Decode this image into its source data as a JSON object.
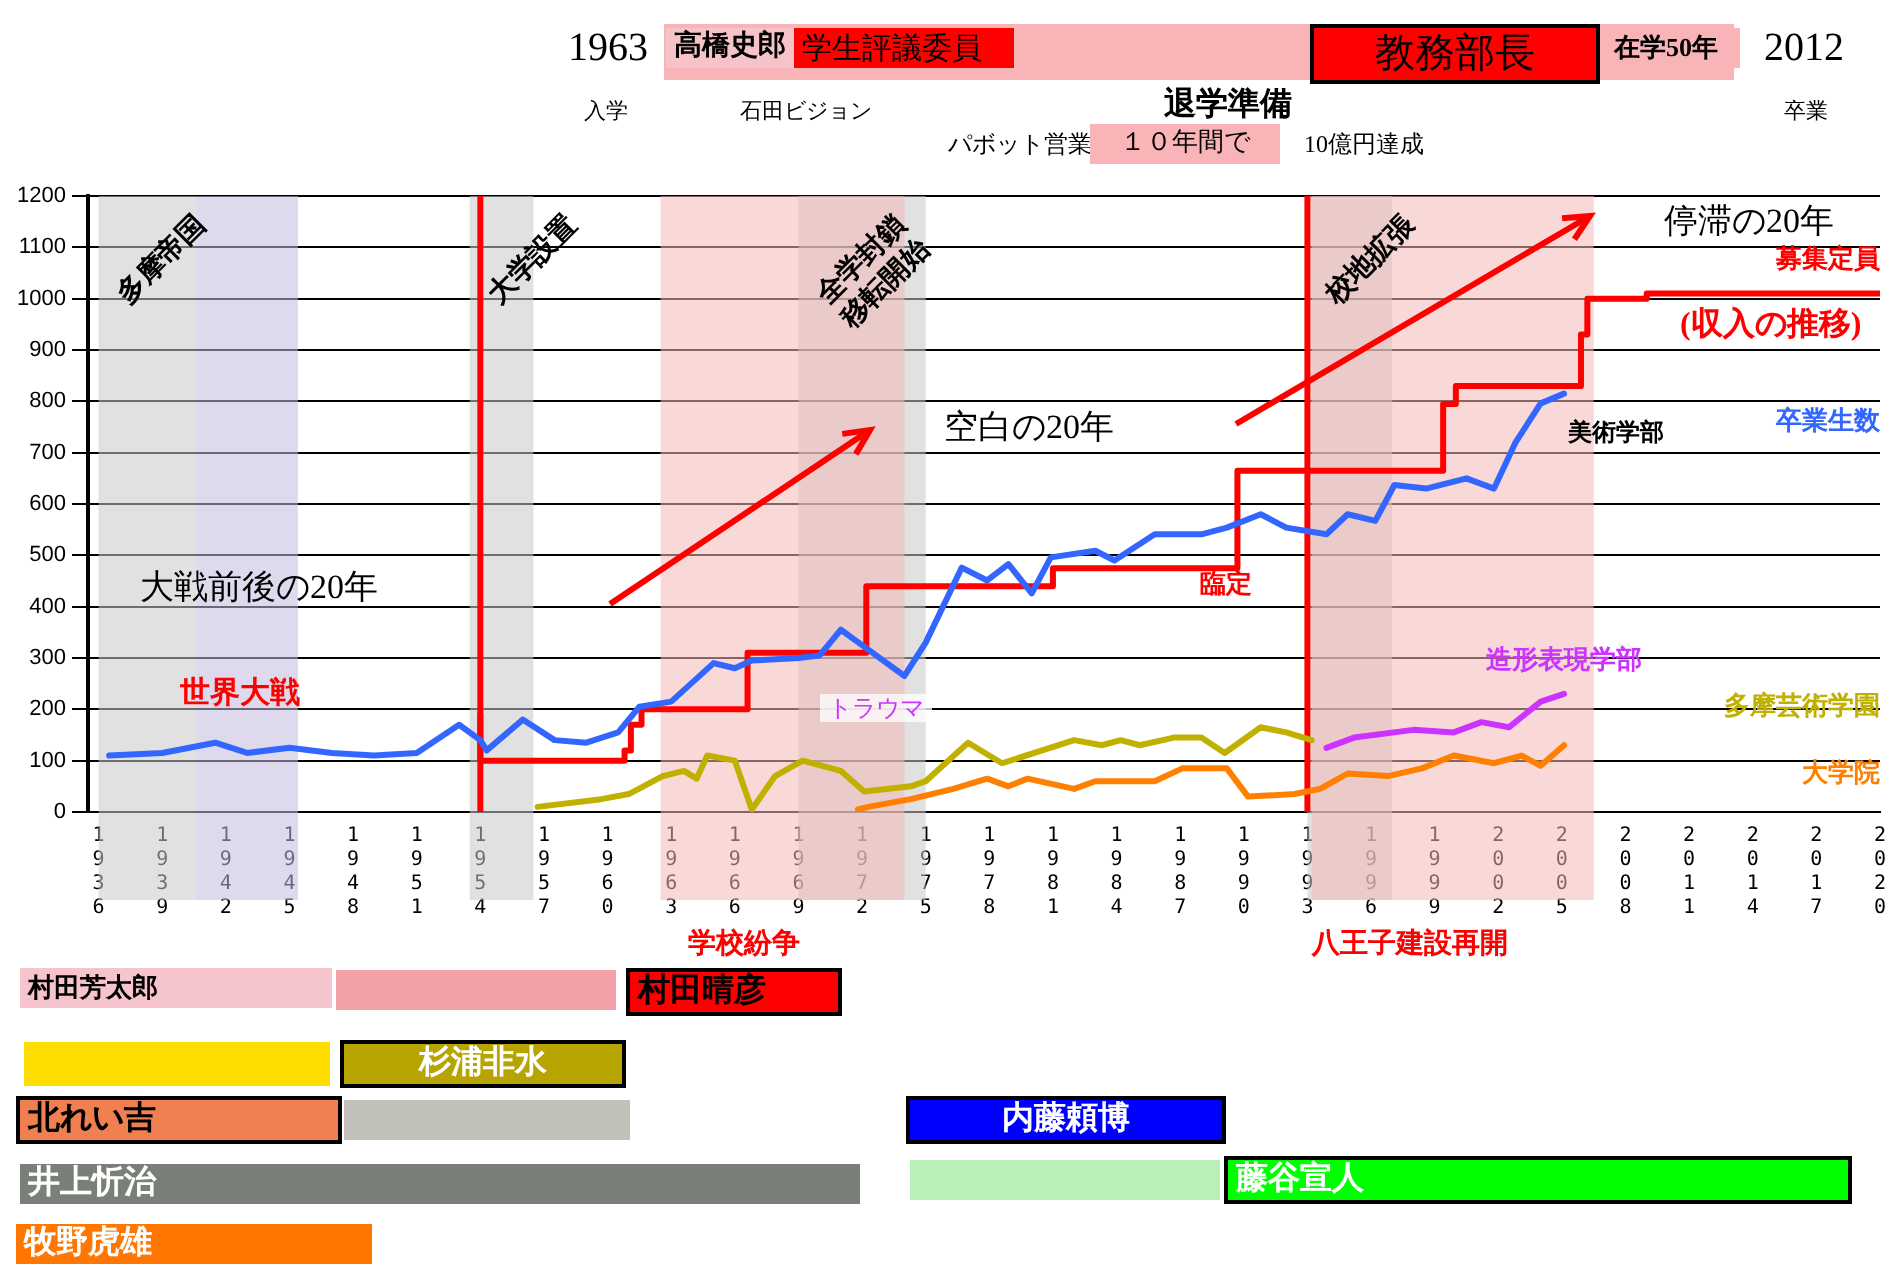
{
  "chart_data": {
    "type": "line",
    "xlim": [
      1935.5,
      2020
    ],
    "ylim": [
      0,
      1200
    ],
    "yticks": [
      0,
      100,
      200,
      300,
      400,
      500,
      600,
      700,
      800,
      900,
      1000,
      1100,
      1200
    ],
    "xticks": [
      1936,
      1939,
      1942,
      1945,
      1948,
      1951,
      1954,
      1957,
      1960,
      1963,
      1966,
      1969,
      1972,
      1975,
      1978,
      1981,
      1984,
      1987,
      1990,
      1993,
      1996,
      1999,
      2002,
      2005,
      2008,
      2011,
      2014,
      2017,
      2020
    ],
    "grid": "y",
    "legend": false,
    "series": [
      {
        "name": "卒業生数",
        "type": "line",
        "color": "#3366ff",
        "x": [
          1936.5,
          1939,
          1941.5,
          1943,
          1945,
          1947,
          1949,
          1951,
          1953,
          1954,
          1954.3,
          1956,
          1957.5,
          1959,
          1960.5,
          1961.5,
          1963,
          1965,
          1966,
          1966.8,
          1969,
          1970,
          1971,
          1972,
          1974,
          1975,
          1976.7,
          1977.9,
          1978.9,
          1980,
          1980.9,
          1983,
          1983.9,
          1985.8,
          1988,
          1989.2,
          1990.8,
          1992,
          1993.9,
          1994.9,
          1996.2,
          1997.1,
          1998.6,
          2000.5,
          2001.8,
          2002.8,
          2004,
          2005.1
        ],
        "values": [
          110,
          115,
          135,
          115,
          125,
          115,
          110,
          115,
          170,
          140,
          120,
          180,
          140,
          135,
          155,
          205,
          215,
          290,
          280,
          295,
          300,
          305,
          355,
          325,
          265,
          330,
          476,
          451,
          483,
          426,
          496,
          509,
          490,
          541,
          541,
          554,
          580,
          554,
          541,
          580,
          567,
          637,
          630,
          650,
          630,
          719,
          796,
          815
        ]
      },
      {
        "name": "募集定員",
        "type": "step",
        "color": "#ff0000",
        "x": [
          1954,
          1954,
          1960.8,
          1961.1,
          1961.6,
          1966.6,
          1972.2,
          1981,
          1989.7,
          1999.4,
          2000,
          2005.9,
          2006.2,
          2009,
          2020
        ],
        "values": [
          190,
          100,
          120,
          170,
          200,
          310,
          440,
          475,
          665,
          795,
          830,
          930,
          1000,
          1010,
          1010
        ]
      },
      {
        "name": "多摩芸術学園",
        "type": "line",
        "color": "#c0b000",
        "x": [
          1956.7,
          1959.7,
          1961,
          1962.6,
          1963.6,
          1964.2,
          1964.7,
          1966,
          1966.8,
          1967.9,
          1969.2,
          1971,
          1972.1,
          1974.3,
          1975,
          1977,
          1978.6,
          1982,
          1983.3,
          1984.2,
          1985.1,
          1986.7,
          1988,
          1989.1,
          1990.8,
          1992,
          1993.2
        ],
        "values": [
          10,
          25,
          35,
          70,
          80,
          65,
          110,
          100,
          5,
          70,
          100,
          80,
          40,
          50,
          60,
          135,
          95,
          140,
          130,
          140,
          130,
          145,
          145,
          115,
          165,
          155,
          140
        ]
      },
      {
        "name": "造形表現学部",
        "type": "line",
        "color": "#cc33ff",
        "x": [
          1993.9,
          1995.2,
          1998,
          1999.9,
          2001.2,
          2002.5,
          2004,
          2005.1
        ],
        "values": [
          125,
          145,
          160,
          155,
          175,
          165,
          215,
          230
        ]
      },
      {
        "name": "大学院",
        "type": "line",
        "color": "#ff8000",
        "x": [
          1971.8,
          1972.3,
          1974.3,
          1976.3,
          1977.9,
          1978.9,
          1979.8,
          1982,
          1983,
          1985.8,
          1987.1,
          1989.2,
          1990.2,
          1992.4,
          1993.6,
          1994.9,
          1996.8,
          1998.4,
          1999.9,
          2001.8,
          2003.1,
          2004,
          2005.1
        ],
        "values": [
          5,
          10,
          25,
          45,
          65,
          50,
          65,
          45,
          60,
          60,
          85,
          85,
          30,
          35,
          45,
          75,
          70,
          85,
          110,
          95,
          110,
          90,
          130
        ]
      }
    ],
    "ref_lines": [
      {
        "axis": "x",
        "value": 1954,
        "color": "#ff0000"
      },
      {
        "axis": "x",
        "value": 1993,
        "color": "#ff0000"
      }
    ],
    "bands": [
      {
        "axis": "x",
        "from": 1936,
        "to": 1940.6,
        "label": "多摩帝国",
        "color": "#c8c8c8"
      },
      {
        "axis": "x",
        "from": 1940.6,
        "to": 1945.4,
        "color": "#c3b9dc"
      },
      {
        "axis": "x",
        "from": 1953.5,
        "to": 1956.5,
        "label": "大学設置",
        "color": "#c8c8c8"
      },
      {
        "axis": "x",
        "from": 1969,
        "to": 1975,
        "label": "全学封鎖\n移転開始",
        "color": "#c8c8c8"
      },
      {
        "axis": "x",
        "from": 1993,
        "to": 1997,
        "label": "校地拡張",
        "color": "#c8c8c8"
      },
      {
        "axis": "x",
        "from": 1962.5,
        "to": 1974,
        "color": "#f4b8b8"
      },
      {
        "axis": "x",
        "from": 1993.2,
        "to": 2006.5,
        "color": "#f4b8b8"
      }
    ],
    "annotations": [
      "1963",
      "高橋史郎",
      "学生評議委員",
      "教務部長",
      "在学50年",
      "2012",
      "入学",
      "石田ビジョン",
      "退学準備",
      "パボット営業",
      "１０年間で",
      "10億円達成",
      "卒業",
      "村田芳太郎",
      "村田晴彦",
      "杉浦非水",
      "北れい吉",
      "内藤頼博",
      "井上忻治",
      "藤谷宣人",
      "牧野虎雄",
      "学校紛争",
      "八王子建設再開",
      "世界大戦",
      "大戦前後の20年",
      "空白の20年",
      "停滞の20年",
      "美術学部",
      "臨定",
      "(収入の推移)",
      "トラウマ"
    ]
  }
}
